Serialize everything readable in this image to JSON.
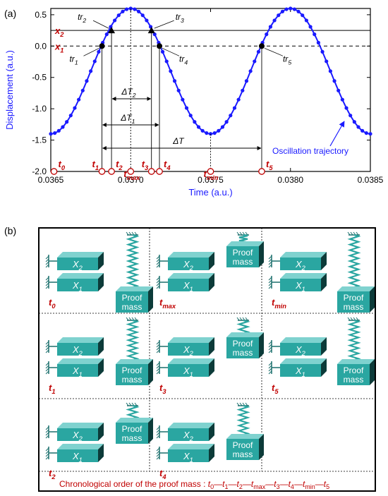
{
  "panel_a": {
    "label": "(a)",
    "xlabel": "Time (a.u.)",
    "ylabel": "Displacement (a.u.)",
    "xticks": [
      "0.0365",
      "0.0370",
      "0.0375",
      "0.0380",
      "0.0385"
    ],
    "yticks": [
      "0.5",
      "0.0",
      "-0.5",
      "-1.0",
      "-1.5",
      "-2.0"
    ],
    "trajectory_label": "Oscillation trajectory",
    "thresholds": {
      "x2": "x",
      "x2_sub": "2",
      "x1": "x",
      "x1_sub": "1"
    },
    "time_markers": {
      "t0": "t",
      "t1": "t",
      "t2": "t",
      "tmax": "t",
      "t3": "t",
      "t4": "t",
      "tmin": "t",
      "t5": "t",
      "s0": "0",
      "s1": "1",
      "s2": "2",
      "smax": "max",
      "s3": "3",
      "s4": "4",
      "smin": "min",
      "s5": "5"
    },
    "tr": {
      "tr": "tr",
      "s1": "1",
      "s2": "2",
      "s3": "3",
      "s4": "4",
      "s5": "5"
    },
    "intervals": {
      "dT2": "ΔT",
      "dT2_sub": "2",
      "dT1": "ΔT",
      "dT1_sub": "1",
      "dT": "ΔT"
    }
  },
  "chart_data": {
    "type": "line",
    "xlabel": "Time (a.u.)",
    "ylabel": "Displacement (a.u.)",
    "xlim": [
      0.0365,
      0.0385
    ],
    "ylim": [
      -2.0,
      0.6
    ],
    "series": [
      {
        "name": "Oscillation trajectory",
        "x_start": 0.0365,
        "x_end": 0.0385,
        "offset": -0.4,
        "amplitude": 1.0,
        "period": 0.001,
        "peak_at": 0.037
      }
    ],
    "x1": 0.0,
    "x2": 0.25,
    "markers": {
      "t1": 0.03682,
      "t2": 0.03688,
      "tmax": 0.037,
      "t3": 0.03713,
      "t4": 0.03718,
      "tmin": 0.0375,
      "t5": 0.03782
    }
  },
  "panel_b": {
    "label": "(b)",
    "proof": "Proof",
    "mass": "mass",
    "x": "X",
    "s1": "1",
    "s2": "2",
    "cells": [
      {
        "t": "t",
        "sub": "0"
      },
      {
        "t": "t",
        "sub": "max"
      },
      {
        "t": "t",
        "sub": "min"
      },
      {
        "t": "t",
        "sub": "1"
      },
      {
        "t": "t",
        "sub": "3"
      },
      {
        "t": "t",
        "sub": "5"
      },
      {
        "t": "t",
        "sub": "2"
      },
      {
        "t": "t",
        "sub": "4"
      }
    ],
    "order_label": "Chronological order of the proof mass :",
    "order_seq": [
      "t0",
      "t1",
      "t2",
      "tmax",
      "t3",
      "t4",
      "tmin",
      "t5"
    ]
  },
  "colors": {
    "curve": "#1a1aff",
    "red": "#c00000",
    "teal": "#2aa6a1",
    "teal_dark": "#1b6f6c"
  }
}
